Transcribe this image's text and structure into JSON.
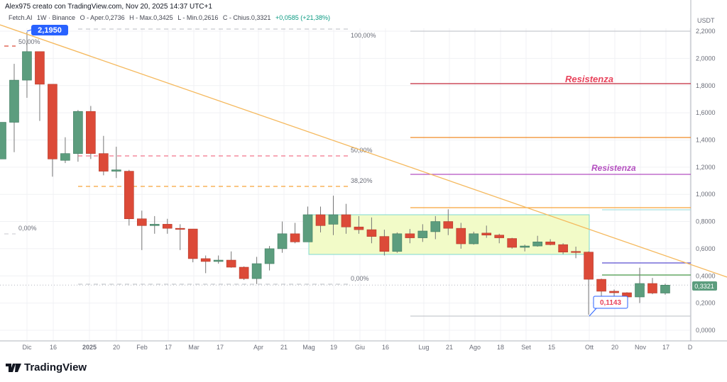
{
  "header": {
    "credit": "Alex975 creato con TradingView.com, Nov 20, 2025 14:37 UTC+1",
    "symbol": "Fetch.AI",
    "interval_exchange": "1W · Binance",
    "open": "O - Aper.0,2736",
    "high": "H - Max.0,3425",
    "low": "L - Min.0,2616",
    "close": "C - Chius.0,3321",
    "change": "+0,0585 (+21,38%)"
  },
  "branding": {
    "logo_text": "TradingView"
  },
  "colors": {
    "up": "#5c9d7e",
    "down": "#dc4a38",
    "trendline": "#f5b95e",
    "accent": "#2962ff"
  },
  "chart_data": {
    "type": "candlestick",
    "currency": "USDT",
    "ylim": [
      0,
      2.3
    ],
    "y_ticks": [
      "0,0000",
      "0,2000",
      "0,4000",
      "0,6000",
      "0,8000",
      "1,0000",
      "1,2000",
      "1,4000",
      "1,6000",
      "1,8000",
      "2,0000",
      "2,2000"
    ],
    "x_ticks": [
      "Dic",
      "16",
      "2025",
      "20",
      "Feb",
      "17",
      "Mar",
      "17",
      "Apr",
      "21",
      "Mag",
      "19",
      "Giu",
      "16",
      "Lug",
      "21",
      "Ago",
      "18",
      "Set",
      "15",
      "Ott",
      "20",
      "Nov",
      "17",
      "D"
    ],
    "grid": true,
    "interval": "1W",
    "first_week": "2024-11-18",
    "ohlc": [
      [
        1.26,
        1.53,
        1.26,
        1.53
      ],
      [
        1.53,
        1.96,
        1.31,
        1.84
      ],
      [
        1.84,
        2.195,
        1.71,
        2.05
      ],
      [
        2.05,
        2.05,
        1.54,
        1.81
      ],
      [
        1.81,
        1.81,
        1.13,
        1.26
      ],
      [
        1.25,
        1.42,
        1.23,
        1.3
      ],
      [
        1.3,
        1.62,
        1.24,
        1.61
      ],
      [
        1.61,
        1.65,
        1.26,
        1.3
      ],
      [
        1.3,
        1.43,
        1.14,
        1.17
      ],
      [
        1.17,
        1.35,
        1.12,
        1.18
      ],
      [
        1.17,
        1.18,
        0.77,
        0.82
      ],
      [
        0.82,
        0.88,
        0.59,
        0.77
      ],
      [
        0.77,
        0.84,
        0.71,
        0.78
      ],
      [
        0.78,
        0.82,
        0.71,
        0.75
      ],
      [
        0.75,
        0.78,
        0.59,
        0.745
      ],
      [
        0.745,
        0.745,
        0.5,
        0.527
      ],
      [
        0.527,
        0.55,
        0.42,
        0.506
      ],
      [
        0.506,
        0.55,
        0.49,
        0.516
      ],
      [
        0.516,
        0.58,
        0.46,
        0.464
      ],
      [
        0.464,
        0.47,
        0.37,
        0.38
      ],
      [
        0.38,
        0.54,
        0.34,
        0.49
      ],
      [
        0.49,
        0.62,
        0.44,
        0.6
      ],
      [
        0.6,
        0.8,
        0.57,
        0.71
      ],
      [
        0.71,
        0.79,
        0.64,
        0.65
      ],
      [
        0.65,
        0.91,
        0.65,
        0.85
      ],
      [
        0.85,
        0.91,
        0.72,
        0.77
      ],
      [
        0.78,
        0.99,
        0.7,
        0.85
      ],
      [
        0.85,
        0.93,
        0.71,
        0.76
      ],
      [
        0.76,
        0.84,
        0.71,
        0.74
      ],
      [
        0.74,
        0.83,
        0.64,
        0.69
      ],
      [
        0.69,
        0.74,
        0.55,
        0.58
      ],
      [
        0.58,
        0.72,
        0.57,
        0.71
      ],
      [
        0.71,
        0.745,
        0.64,
        0.68
      ],
      [
        0.68,
        0.78,
        0.65,
        0.73
      ],
      [
        0.725,
        0.84,
        0.67,
        0.8
      ],
      [
        0.8,
        0.89,
        0.7,
        0.75
      ],
      [
        0.75,
        0.79,
        0.6,
        0.636
      ],
      [
        0.636,
        0.725,
        0.63,
        0.71
      ],
      [
        0.715,
        0.77,
        0.68,
        0.7
      ],
      [
        0.7,
        0.71,
        0.64,
        0.68
      ],
      [
        0.675,
        0.68,
        0.6,
        0.61
      ],
      [
        0.61,
        0.63,
        0.58,
        0.62
      ],
      [
        0.62,
        0.695,
        0.615,
        0.65
      ],
      [
        0.65,
        0.67,
        0.625,
        0.63
      ],
      [
        0.63,
        0.64,
        0.56,
        0.575
      ],
      [
        0.58,
        0.615,
        0.53,
        0.575
      ],
      [
        0.575,
        0.58,
        0.1143,
        0.375
      ],
      [
        0.375,
        0.38,
        0.25,
        0.287
      ],
      [
        0.287,
        0.3,
        0.25,
        0.276
      ],
      [
        0.276,
        0.28,
        0.24,
        0.245
      ],
      [
        0.245,
        0.46,
        0.2,
        0.344
      ],
      [
        0.344,
        0.385,
        0.265,
        0.2736
      ],
      [
        0.2736,
        0.3425,
        0.2616,
        0.3321
      ]
    ],
    "last_price": "0,3321",
    "annotations": {
      "high_label": "2,1950",
      "low_label": "0,1143",
      "resistance_labels": [
        "Resistenza",
        "Resistenza"
      ],
      "fib_left": [
        "50,00%",
        "0,00%"
      ],
      "fib_right": [
        "100,00%",
        "50,00%",
        "38,20%",
        "0,00%"
      ]
    }
  }
}
